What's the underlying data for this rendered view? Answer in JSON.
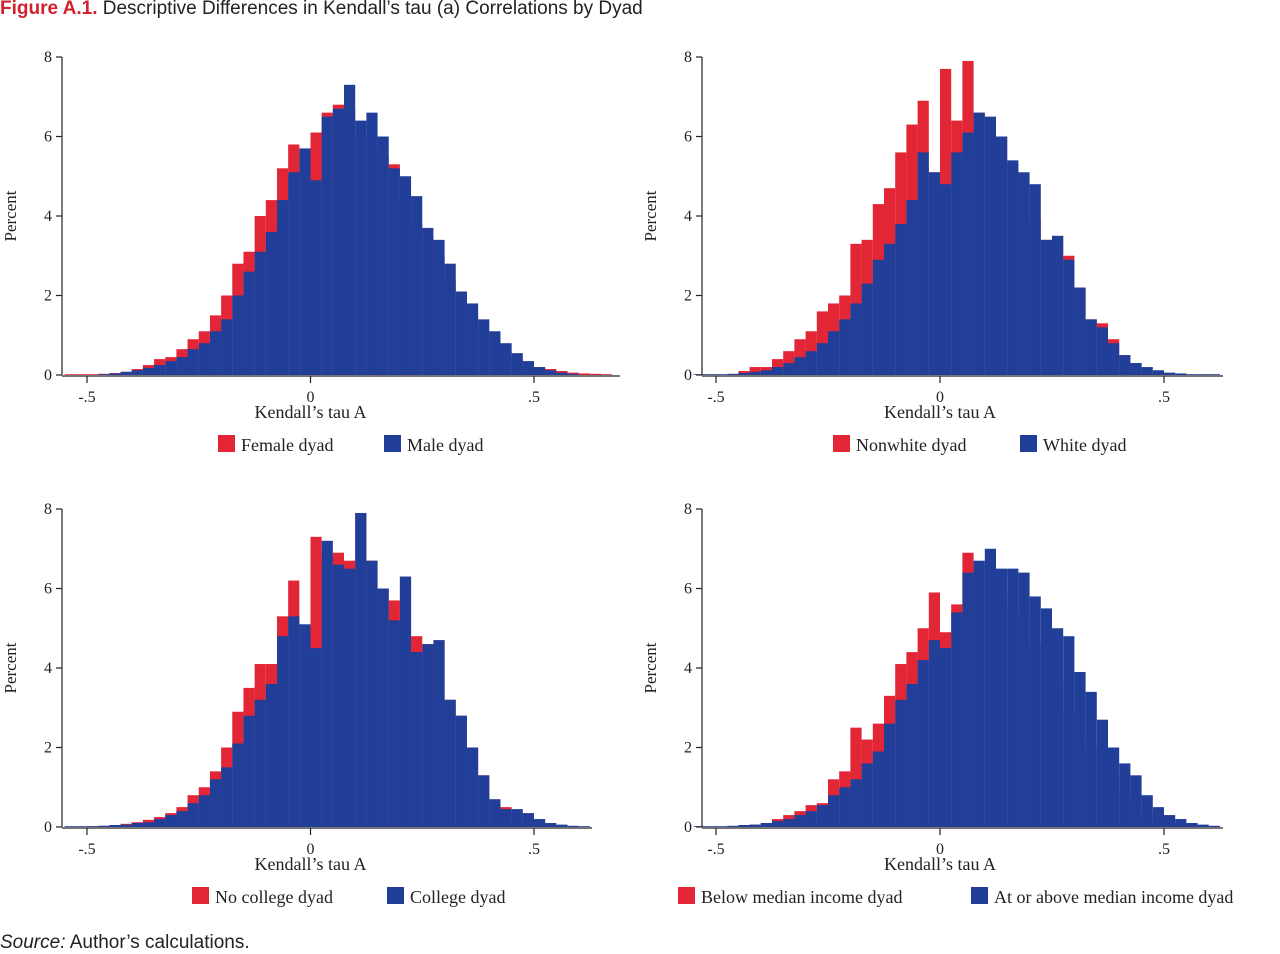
{
  "figure": {
    "label": "Figure A.1.",
    "title": "Descriptive Differences in Kendall’s tau (a) Correlations by Dyad",
    "source_label": "Source:",
    "source_text": "Author’s calculations."
  },
  "colors": {
    "series_a": "#e32636",
    "series_b": "#213f99"
  },
  "chart_data": [
    {
      "type": "histogram",
      "xlabel": "Kendall’s tau A",
      "ylabel": "Percent",
      "xlim": [
        -0.55,
        0.7
      ],
      "ylim": [
        0,
        8
      ],
      "xticks": [
        -0.5,
        0,
        0.5
      ],
      "xtick_labels": [
        "-.5",
        "0",
        ".5"
      ],
      "yticks": [
        0,
        2,
        4,
        6,
        8
      ],
      "bin_width": 0.025,
      "legend_position": "bottom",
      "series": [
        {
          "name": "Female dyad",
          "bin_starts": [
            -0.55,
            -0.525,
            -0.5,
            -0.475,
            -0.45,
            -0.425,
            -0.4,
            -0.375,
            -0.35,
            -0.325,
            -0.3,
            -0.275,
            -0.25,
            -0.225,
            -0.2,
            -0.175,
            -0.15,
            -0.125,
            -0.1,
            -0.075,
            -0.05,
            -0.025,
            0,
            0.025,
            0.05,
            0.075,
            0.1,
            0.125,
            0.15,
            0.175,
            0.2,
            0.225,
            0.25,
            0.275,
            0.3,
            0.325,
            0.35,
            0.375,
            0.4,
            0.425,
            0.45,
            0.475,
            0.5,
            0.525,
            0.55,
            0.575,
            0.6,
            0.625,
            0.65
          ],
          "values": [
            0.02,
            0.02,
            0.02,
            0.03,
            0.05,
            0.08,
            0.15,
            0.25,
            0.4,
            0.45,
            0.65,
            0.9,
            1.1,
            1.5,
            2.0,
            2.8,
            3.1,
            4.0,
            4.4,
            5.2,
            5.8,
            5.1,
            6.1,
            6.6,
            6.8,
            6.7,
            6.0,
            6.0,
            5.5,
            5.3,
            4.5,
            3.8,
            3.5,
            3.0,
            2.4,
            2.0,
            1.6,
            1.1,
            0.8,
            0.6,
            0.4,
            0.3,
            0.2,
            0.15,
            0.1,
            0.06,
            0.04,
            0.03,
            0.02
          ]
        },
        {
          "name": "Male dyad",
          "bin_starts": [
            -0.475,
            -0.45,
            -0.425,
            -0.4,
            -0.375,
            -0.35,
            -0.325,
            -0.3,
            -0.275,
            -0.25,
            -0.225,
            -0.2,
            -0.175,
            -0.15,
            -0.125,
            -0.1,
            -0.075,
            -0.05,
            -0.025,
            0,
            0.025,
            0.05,
            0.075,
            0.1,
            0.125,
            0.15,
            0.175,
            0.2,
            0.225,
            0.25,
            0.275,
            0.3,
            0.325,
            0.35,
            0.375,
            0.4,
            0.425,
            0.45,
            0.475,
            0.5,
            0.525,
            0.55,
            0.575
          ],
          "values": [
            0.02,
            0.04,
            0.08,
            0.12,
            0.18,
            0.25,
            0.35,
            0.45,
            0.65,
            0.8,
            1.1,
            1.4,
            2.0,
            2.6,
            3.1,
            3.6,
            4.4,
            5.1,
            5.7,
            4.9,
            6.5,
            6.7,
            7.3,
            6.4,
            6.6,
            6.0,
            5.2,
            5.0,
            4.5,
            3.7,
            3.4,
            2.8,
            2.1,
            1.8,
            1.4,
            1.1,
            0.8,
            0.55,
            0.35,
            0.2,
            0.12,
            0.06,
            0.03
          ]
        }
      ]
    },
    {
      "type": "histogram",
      "xlabel": "Kendall’s tau A",
      "ylabel": "Percent",
      "xlim": [
        -0.55,
        0.63
      ],
      "ylim": [
        0,
        8
      ],
      "xticks": [
        -0.5,
        0,
        0.5
      ],
      "xtick_labels": [
        "-.5",
        "0",
        ".5"
      ],
      "yticks": [
        0,
        2,
        4,
        6,
        8
      ],
      "bin_width": 0.025,
      "legend_position": "bottom",
      "series": [
        {
          "name": "Nonwhite dyad",
          "bin_starts": [
            -0.45,
            -0.425,
            -0.4,
            -0.375,
            -0.35,
            -0.325,
            -0.3,
            -0.275,
            -0.25,
            -0.225,
            -0.2,
            -0.175,
            -0.15,
            -0.125,
            -0.1,
            -0.075,
            -0.05,
            -0.025,
            0,
            0.025,
            0.05,
            0.075,
            0.1,
            0.125,
            0.15,
            0.175,
            0.2,
            0.225,
            0.25,
            0.275,
            0.3,
            0.325,
            0.35,
            0.375,
            0.4,
            0.425,
            0.45
          ],
          "values": [
            0.1,
            0.2,
            0.2,
            0.4,
            0.6,
            0.9,
            1.1,
            1.6,
            1.8,
            2.0,
            3.3,
            3.4,
            4.3,
            4.7,
            5.6,
            6.3,
            6.9,
            5.1,
            7.7,
            6.4,
            7.9,
            6.6,
            6.4,
            6.0,
            5.3,
            4.6,
            3.9,
            3.4,
            3.5,
            3.0,
            2.2,
            1.4,
            1.3,
            0.9,
            0.5,
            0.3,
            0.1
          ]
        },
        {
          "name": "White dyad",
          "bin_starts": [
            -0.55,
            -0.525,
            -0.5,
            -0.475,
            -0.45,
            -0.425,
            -0.4,
            -0.375,
            -0.35,
            -0.325,
            -0.3,
            -0.275,
            -0.25,
            -0.225,
            -0.2,
            -0.175,
            -0.15,
            -0.125,
            -0.1,
            -0.075,
            -0.05,
            -0.025,
            0,
            0.025,
            0.05,
            0.075,
            0.1,
            0.125,
            0.15,
            0.175,
            0.2,
            0.225,
            0.25,
            0.275,
            0.3,
            0.325,
            0.35,
            0.375,
            0.4,
            0.425,
            0.45,
            0.475,
            0.5,
            0.525,
            0.55,
            0.575,
            0.6
          ],
          "values": [
            0.02,
            0.02,
            0.02,
            0.03,
            0.05,
            0.08,
            0.12,
            0.2,
            0.3,
            0.45,
            0.6,
            0.8,
            1.1,
            1.4,
            1.8,
            2.3,
            2.9,
            3.3,
            3.8,
            4.4,
            5.6,
            5.1,
            4.8,
            5.6,
            6.1,
            6.6,
            6.5,
            6.0,
            5.4,
            5.1,
            4.8,
            3.4,
            3.5,
            2.9,
            2.2,
            1.4,
            1.2,
            0.8,
            0.5,
            0.3,
            0.2,
            0.12,
            0.06,
            0.04,
            0.02,
            0.02,
            0.02
          ]
        }
      ]
    },
    {
      "type": "histogram",
      "xlabel": "Kendall’s tau A",
      "ylabel": "Percent",
      "xlim": [
        -0.55,
        0.63
      ],
      "ylim": [
        0,
        8
      ],
      "xticks": [
        -0.5,
        0,
        0.5
      ],
      "xtick_labels": [
        "-.5",
        "0",
        ".5"
      ],
      "yticks": [
        0,
        2,
        4,
        6,
        8
      ],
      "bin_width": 0.025,
      "legend_position": "bottom",
      "series": [
        {
          "name": "No college dyad",
          "bin_starts": [
            -0.5,
            -0.475,
            -0.45,
            -0.425,
            -0.4,
            -0.375,
            -0.35,
            -0.325,
            -0.3,
            -0.275,
            -0.25,
            -0.225,
            -0.2,
            -0.175,
            -0.15,
            -0.125,
            -0.1,
            -0.075,
            -0.05,
            -0.025,
            0,
            0.025,
            0.05,
            0.075,
            0.1,
            0.125,
            0.15,
            0.175,
            0.2,
            0.225,
            0.25,
            0.275,
            0.3,
            0.325,
            0.35,
            0.375,
            0.4,
            0.425,
            0.45,
            0.475,
            0.5,
            0.525,
            0.55
          ],
          "values": [
            0.02,
            0.03,
            0.05,
            0.08,
            0.12,
            0.18,
            0.25,
            0.35,
            0.5,
            0.8,
            1.0,
            1.4,
            2.0,
            2.9,
            3.5,
            4.1,
            4.1,
            5.3,
            6.2,
            4.6,
            7.3,
            6.8,
            6.9,
            6.7,
            7.9,
            6.7,
            6.0,
            5.7,
            6.3,
            4.8,
            4.6,
            4.7,
            3.2,
            2.8,
            2.0,
            1.3,
            0.6,
            0.5,
            0.35,
            0.2,
            0.12,
            0.06,
            0.03
          ]
        },
        {
          "name": "College dyad",
          "bin_starts": [
            -0.55,
            -0.525,
            -0.5,
            -0.475,
            -0.45,
            -0.425,
            -0.4,
            -0.375,
            -0.35,
            -0.325,
            -0.3,
            -0.275,
            -0.25,
            -0.225,
            -0.2,
            -0.175,
            -0.15,
            -0.125,
            -0.1,
            -0.075,
            -0.05,
            -0.025,
            0,
            0.025,
            0.05,
            0.075,
            0.1,
            0.125,
            0.15,
            0.175,
            0.2,
            0.225,
            0.25,
            0.275,
            0.3,
            0.325,
            0.35,
            0.375,
            0.4,
            0.425,
            0.45,
            0.475,
            0.5,
            0.525,
            0.55,
            0.575,
            0.6
          ],
          "values": [
            0.02,
            0.02,
            0.02,
            0.03,
            0.05,
            0.06,
            0.1,
            0.12,
            0.2,
            0.3,
            0.4,
            0.6,
            0.8,
            1.2,
            1.5,
            2.1,
            2.8,
            3.2,
            3.6,
            4.8,
            5.3,
            5.1,
            4.5,
            7.2,
            6.6,
            6.5,
            7.9,
            6.7,
            6.0,
            5.2,
            6.3,
            4.4,
            4.6,
            4.7,
            3.2,
            2.8,
            2.0,
            1.3,
            0.7,
            0.45,
            0.45,
            0.35,
            0.2,
            0.1,
            0.06,
            0.03,
            0.02
          ]
        }
      ]
    },
    {
      "type": "histogram",
      "xlabel": "Kendall’s tau A",
      "ylabel": "Percent",
      "xlim": [
        -0.55,
        0.63
      ],
      "ylim": [
        0,
        8
      ],
      "xticks": [
        -0.5,
        0,
        0.5
      ],
      "xtick_labels": [
        "-.5",
        "0",
        ".5"
      ],
      "yticks": [
        0,
        2,
        4,
        6,
        8
      ],
      "bin_width": 0.025,
      "legend_position": "bottom",
      "series": [
        {
          "name": "Below median income dyad",
          "bin_starts": [
            -0.45,
            -0.425,
            -0.4,
            -0.375,
            -0.35,
            -0.325,
            -0.3,
            -0.275,
            -0.25,
            -0.225,
            -0.2,
            -0.175,
            -0.15,
            -0.125,
            -0.1,
            -0.075,
            -0.05,
            -0.025,
            0,
            0.025,
            0.05,
            0.075,
            0.1,
            0.125,
            0.15,
            0.175,
            0.2,
            0.225,
            0.25,
            0.275,
            0.3,
            0.325,
            0.35,
            0.375,
            0.4,
            0.425,
            0.45,
            0.475,
            0.5,
            0.525,
            0.55
          ],
          "values": [
            0.04,
            0.06,
            0.1,
            0.2,
            0.3,
            0.4,
            0.55,
            0.6,
            1.2,
            1.4,
            2.5,
            2.2,
            2.6,
            3.3,
            4.1,
            4.4,
            5.0,
            5.9,
            4.9,
            5.6,
            6.9,
            6.6,
            6.1,
            5.8,
            5.4,
            5.3,
            4.6,
            4.0,
            3.6,
            2.9,
            2.2,
            2.0,
            1.7,
            1.3,
            0.8,
            0.4,
            0.35,
            0.2,
            0.1,
            0.06,
            0.03
          ]
        },
        {
          "name": "At or above median income dyad",
          "bin_starts": [
            -0.55,
            -0.525,
            -0.5,
            -0.475,
            -0.45,
            -0.425,
            -0.4,
            -0.375,
            -0.35,
            -0.325,
            -0.3,
            -0.275,
            -0.25,
            -0.225,
            -0.2,
            -0.175,
            -0.15,
            -0.125,
            -0.1,
            -0.075,
            -0.05,
            -0.025,
            0,
            0.025,
            0.05,
            0.075,
            0.1,
            0.125,
            0.15,
            0.175,
            0.2,
            0.225,
            0.25,
            0.275,
            0.3,
            0.325,
            0.35,
            0.375,
            0.4,
            0.425,
            0.45,
            0.475,
            0.5,
            0.525,
            0.55,
            0.575,
            0.6
          ],
          "values": [
            0.02,
            0.02,
            0.02,
            0.03,
            0.05,
            0.06,
            0.1,
            0.15,
            0.2,
            0.3,
            0.4,
            0.55,
            0.8,
            1.0,
            1.2,
            1.6,
            1.9,
            2.6,
            3.2,
            3.6,
            4.2,
            4.7,
            4.5,
            5.4,
            6.4,
            6.7,
            7.0,
            6.5,
            6.5,
            6.4,
            5.8,
            5.5,
            5.0,
            4.8,
            3.9,
            3.4,
            2.7,
            2.0,
            1.6,
            1.3,
            0.8,
            0.5,
            0.3,
            0.2,
            0.1,
            0.06,
            0.03
          ]
        }
      ]
    }
  ]
}
